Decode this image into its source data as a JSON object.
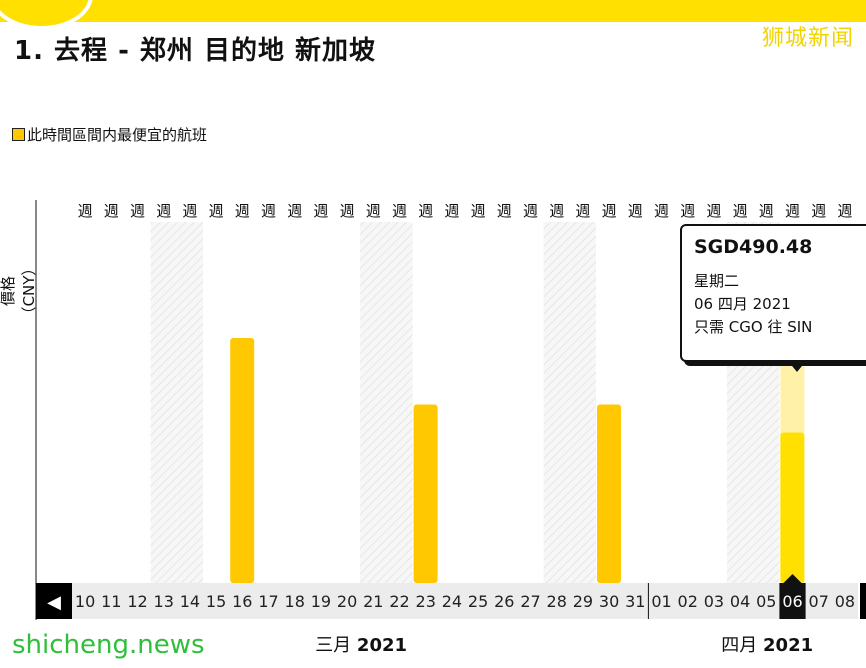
{
  "header": {
    "watermark": "狮城新闻",
    "title": "1. 去程 - 郑州 目的地 新加坡"
  },
  "legend": {
    "label": "此時間區間内最便宜的航班"
  },
  "colors": {
    "bar": "#ffc800",
    "bar_selected": "#ffe000",
    "bar_selected_top": "#fff2a8",
    "accent": "#ffe000"
  },
  "chart_data": {
    "type": "bar",
    "ylabel": "價格（CNY）",
    "weekday_label": "週",
    "categories": [
      "10",
      "11",
      "12",
      "13",
      "14",
      "15",
      "16",
      "17",
      "18",
      "19",
      "20",
      "21",
      "22",
      "23",
      "24",
      "25",
      "26",
      "27",
      "28",
      "29",
      "30",
      "31",
      "01",
      "02",
      "03",
      "04",
      "05",
      "06",
      "07",
      "08"
    ],
    "values": [
      null,
      null,
      null,
      null,
      null,
      null,
      0.7,
      null,
      null,
      null,
      null,
      null,
      null,
      0.51,
      null,
      null,
      null,
      null,
      null,
      null,
      0.51,
      null,
      null,
      null,
      null,
      null,
      null,
      0.43,
      null,
      null
    ],
    "selected_index": 27,
    "selected_overlay_value": 0.62,
    "shaded_columns": [
      3,
      4,
      11,
      12,
      18,
      19,
      25,
      26
    ],
    "month_labels": [
      {
        "month": "三月",
        "year": "2021",
        "center_index": 10.5
      },
      {
        "month": "四月",
        "year": "2021",
        "center_index": 26
      }
    ]
  },
  "tooltip": {
    "price": "SGD490.48",
    "weekday": "星期二",
    "date": "06 四月 2021",
    "route": "只需 CGO 往 SIN"
  },
  "nav": {
    "prev_icon": "◀"
  },
  "footer": {
    "watermark": "shicheng.news"
  }
}
